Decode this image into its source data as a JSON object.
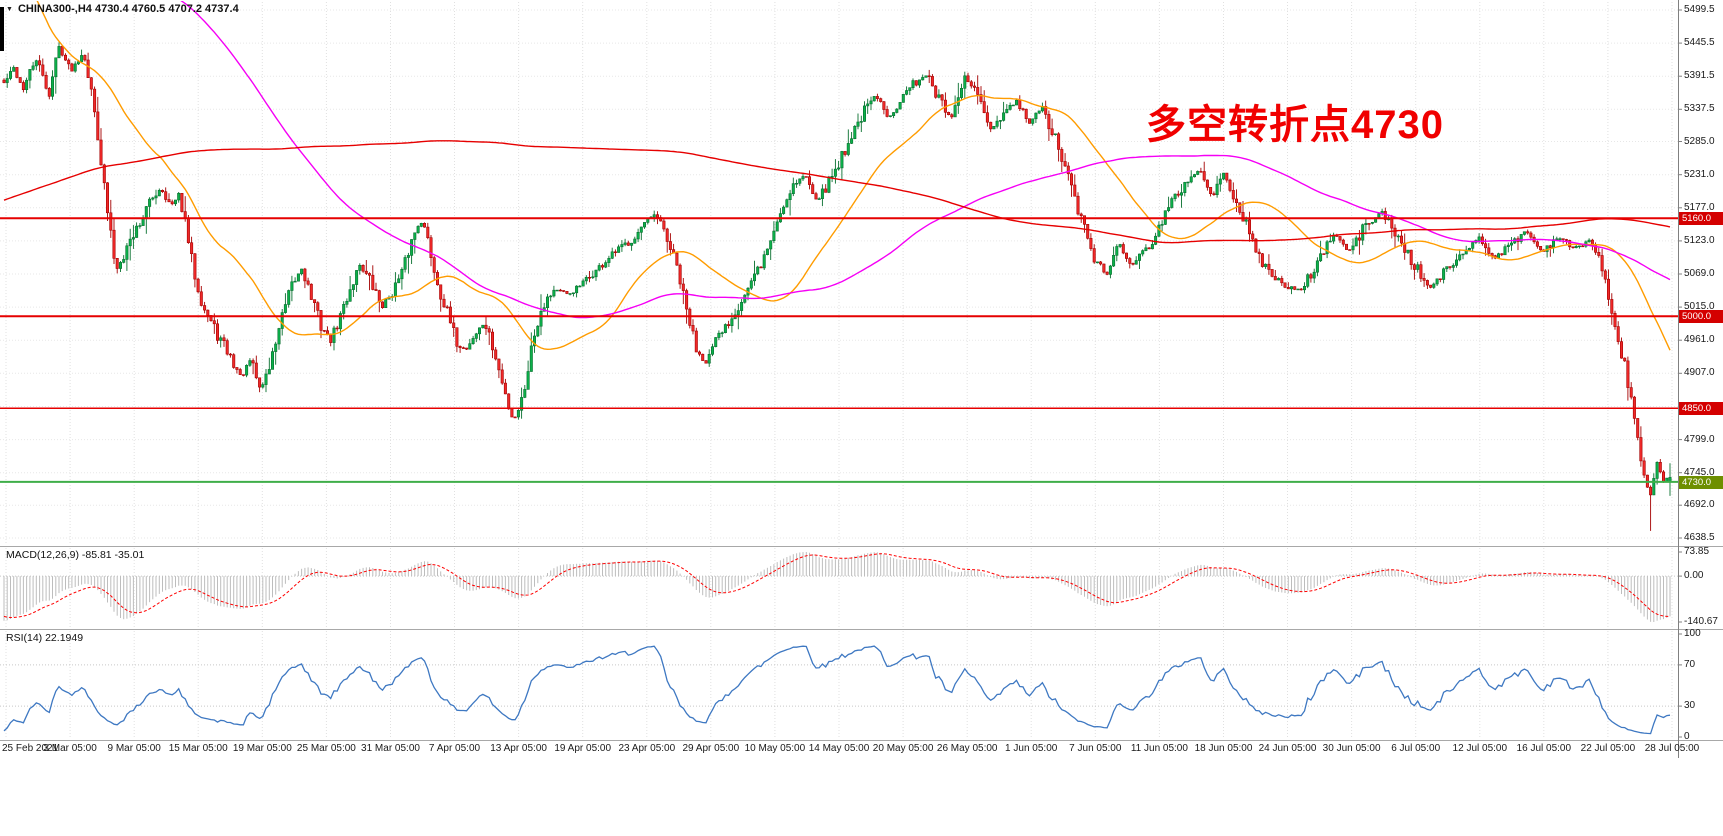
{
  "header": {
    "title": "CHINA300-,H4 4730.4 4760.5 4707.2 4737.4",
    "symbol_marker": "▼"
  },
  "annotation": {
    "text": "多空转折点4730",
    "color": "#f00000"
  },
  "panels": {
    "macd_label": "MACD(12,26,9) -85.81 -35.01",
    "rsi_label": "RSI(14) 22.1949"
  },
  "chart_data": {
    "type": "candlestick",
    "symbol": "CHINA300-",
    "timeframe": "H4",
    "last_bar": {
      "open": 4730.4,
      "high": 4760.5,
      "low": 4707.2,
      "close": 4737.4
    },
    "num_candles": 516,
    "y_axis": {
      "top_value": 5499.5,
      "bottom_value": 4638.5,
      "tick_labels": [
        "5499.5",
        "5445.5",
        "5391.5",
        "5337.5",
        "5285.0",
        "5231.0",
        "5177.0",
        "5123.0",
        "5069.0",
        "5015.0",
        "4961.0",
        "4907.0",
        "4853.0",
        "4799.0",
        "4745.0",
        "4692.0",
        "4638.5"
      ],
      "tick_values": [
        5499.5,
        5445.5,
        5391.5,
        5337.5,
        5285.0,
        5231.0,
        5177.0,
        5123.0,
        5069.0,
        5015.0,
        4961.0,
        4907.0,
        4853.0,
        4799.0,
        4745.0,
        4692.0,
        4638.5
      ]
    },
    "x_axis": {
      "tick_labels": [
        "25 Feb 2021",
        "3 Mar 05:00",
        "9 Mar 05:00",
        "15 Mar 05:00",
        "19 Mar 05:00",
        "25 Mar 05:00",
        "31 Mar 05:00",
        "7 Apr 05:00",
        "13 Apr 05:00",
        "19 Apr 05:00",
        "23 Apr 05:00",
        "29 Apr 05:00",
        "10 May 05:00",
        "14 May 05:00",
        "20 May 05:00",
        "26 May 05:00",
        "1 Jun 05:00",
        "7 Jun 05:00",
        "11 Jun 05:00",
        "18 Jun 05:00",
        "24 Jun 05:00",
        "30 Jun 05:00",
        "6 Jul 05:00",
        "12 Jul 05:00",
        "16 Jul 05:00",
        "22 Jul 05:00",
        "28 Jul 05:00"
      ]
    },
    "levels": [
      {
        "value": 5160.0,
        "label": "5160.0",
        "line_color": "#e60000",
        "box_color": "#d40000",
        "width": 2
      },
      {
        "value": 5000.0,
        "label": "5000.0",
        "line_color": "#e60000",
        "box_color": "#d40000",
        "width": 2
      },
      {
        "value": 4850.0,
        "label": "4850.0",
        "line_color": "#e60000",
        "box_color": "#d40000",
        "width": 1.5
      },
      {
        "value": 4730.0,
        "label": "4730.0",
        "line_color": "#3fae49",
        "box_color": "#6d8f00",
        "width": 2
      }
    ],
    "close_path": [
      [
        0,
        5380
      ],
      [
        0.15,
        5405
      ],
      [
        0.3,
        5370
      ],
      [
        0.5,
        5420
      ],
      [
        0.7,
        5360
      ],
      [
        0.85,
        5440
      ],
      [
        1.05,
        5400
      ],
      [
        1.25,
        5435
      ],
      [
        1.45,
        5310
      ],
      [
        1.6,
        5180
      ],
      [
        1.75,
        5075
      ],
      [
        1.9,
        5110
      ],
      [
        2.1,
        5150
      ],
      [
        2.3,
        5190
      ],
      [
        2.45,
        5210
      ],
      [
        2.6,
        5180
      ],
      [
        2.75,
        5195
      ],
      [
        2.95,
        5080
      ],
      [
        3.1,
        5020
      ],
      [
        3.3,
        4975
      ],
      [
        3.5,
        4940
      ],
      [
        3.7,
        4900
      ],
      [
        3.85,
        4930
      ],
      [
        4.0,
        4880
      ],
      [
        4.15,
        4920
      ],
      [
        4.3,
        4985
      ],
      [
        4.5,
        5050
      ],
      [
        4.65,
        5080
      ],
      [
        4.8,
        5030
      ],
      [
        4.95,
        4985
      ],
      [
        5.1,
        4960
      ],
      [
        5.25,
        5000
      ],
      [
        5.4,
        5045
      ],
      [
        5.55,
        5085
      ],
      [
        5.7,
        5060
      ],
      [
        5.9,
        5015
      ],
      [
        6.05,
        5040
      ],
      [
        6.2,
        5065
      ],
      [
        6.35,
        5120
      ],
      [
        6.5,
        5160
      ],
      [
        6.6,
        5130
      ],
      [
        6.75,
        5060
      ],
      [
        6.9,
        5010
      ],
      [
        7.05,
        4960
      ],
      [
        7.2,
        4945
      ],
      [
        7.35,
        4970
      ],
      [
        7.5,
        4990
      ],
      [
        7.65,
        4940
      ],
      [
        7.8,
        4880
      ],
      [
        7.95,
        4830
      ],
      [
        8.1,
        4870
      ],
      [
        8.25,
        4960
      ],
      [
        8.4,
        5020
      ],
      [
        8.6,
        5045
      ],
      [
        8.8,
        5035
      ],
      [
        9.0,
        5050
      ],
      [
        9.2,
        5070
      ],
      [
        9.4,
        5090
      ],
      [
        9.6,
        5110
      ],
      [
        9.8,
        5125
      ],
      [
        10.0,
        5150
      ],
      [
        10.15,
        5165
      ],
      [
        10.3,
        5140
      ],
      [
        10.5,
        5080
      ],
      [
        10.65,
        5010
      ],
      [
        10.8,
        4950
      ],
      [
        10.95,
        4925
      ],
      [
        11.1,
        4955
      ],
      [
        11.3,
        4990
      ],
      [
        11.5,
        5025
      ],
      [
        11.7,
        5060
      ],
      [
        11.9,
        5105
      ],
      [
        12.1,
        5165
      ],
      [
        12.3,
        5215
      ],
      [
        12.5,
        5230
      ],
      [
        12.7,
        5190
      ],
      [
        12.85,
        5215
      ],
      [
        13.0,
        5245
      ],
      [
        13.2,
        5290
      ],
      [
        13.4,
        5330
      ],
      [
        13.6,
        5360
      ],
      [
        13.8,
        5325
      ],
      [
        14.0,
        5355
      ],
      [
        14.2,
        5380
      ],
      [
        14.4,
        5395
      ],
      [
        14.6,
        5350
      ],
      [
        14.8,
        5320
      ],
      [
        15.0,
        5390
      ],
      [
        15.2,
        5360
      ],
      [
        15.4,
        5300
      ],
      [
        15.6,
        5330
      ],
      [
        15.8,
        5350
      ],
      [
        16.0,
        5315
      ],
      [
        16.2,
        5340
      ],
      [
        16.4,
        5290
      ],
      [
        16.6,
        5230
      ],
      [
        16.8,
        5160
      ],
      [
        17.0,
        5100
      ],
      [
        17.2,
        5065
      ],
      [
        17.4,
        5120
      ],
      [
        17.6,
        5085
      ],
      [
        17.8,
        5105
      ],
      [
        18.0,
        5140
      ],
      [
        18.2,
        5180
      ],
      [
        18.45,
        5220
      ],
      [
        18.65,
        5240
      ],
      [
        18.85,
        5195
      ],
      [
        19.05,
        5235
      ],
      [
        19.25,
        5185
      ],
      [
        19.5,
        5115
      ],
      [
        19.75,
        5070
      ],
      [
        20.0,
        5050
      ],
      [
        20.25,
        5040
      ],
      [
        20.5,
        5090
      ],
      [
        20.75,
        5135
      ],
      [
        21.0,
        5105
      ],
      [
        21.25,
        5150
      ],
      [
        21.5,
        5170
      ],
      [
        21.75,
        5130
      ],
      [
        22.0,
        5085
      ],
      [
        22.25,
        5045
      ],
      [
        22.5,
        5075
      ],
      [
        22.75,
        5100
      ],
      [
        23.0,
        5130
      ],
      [
        23.25,
        5095
      ],
      [
        23.5,
        5115
      ],
      [
        23.75,
        5140
      ],
      [
        24.0,
        5105
      ],
      [
        24.25,
        5130
      ],
      [
        24.5,
        5110
      ],
      [
        24.75,
        5125
      ],
      [
        24.95,
        5080
      ],
      [
        25.1,
        4990
      ],
      [
        25.25,
        4940
      ],
      [
        25.4,
        4865
      ],
      [
        25.55,
        4760
      ],
      [
        25.68,
        4700
      ],
      [
        25.8,
        4756
      ],
      [
        25.9,
        4728
      ],
      [
        26,
        4737.4
      ]
    ],
    "prehistory_path": [
      [
        -400,
        4660
      ],
      [
        -340,
        4760
      ],
      [
        -280,
        4860
      ],
      [
        -220,
        4960
      ],
      [
        -160,
        5080
      ],
      [
        -110,
        5300
      ],
      [
        -70,
        5550
      ],
      [
        -45,
        5800
      ],
      [
        -32,
        5930
      ],
      [
        -22,
        5780
      ],
      [
        -12,
        5560
      ],
      [
        -4,
        5430
      ],
      [
        -1,
        5390
      ]
    ],
    "spike_low": {
      "bar_index": 509,
      "price": 4650
    },
    "candle_colors": {
      "up_fill": "#0cb04a",
      "up_stroke": "#076f2e",
      "down_fill": "#ef2929",
      "down_stroke": "#a40000"
    },
    "moving_averages": [
      {
        "name": "fast-ma",
        "period": 34,
        "color": "#ff9c00"
      },
      {
        "name": "medium-ma",
        "period": 120,
        "color": "#f500f5"
      },
      {
        "name": "slow-ma",
        "period": 330,
        "color": "#e60000"
      }
    ],
    "macd": {
      "params": "12,26,9",
      "values": [
        -85.81,
        -35.01
      ],
      "axis_tick_labels": [
        "73.85",
        "0.00",
        "-140.67"
      ],
      "axis_tick_values": [
        73.85,
        0,
        -140.67
      ],
      "histogram_color": "#bdbdbd",
      "signal_color": "#ff0000"
    },
    "rsi": {
      "period": 14,
      "value": 22.1949,
      "axis_tick_labels": [
        "100",
        "70",
        "30",
        "0"
      ],
      "axis_tick_values": [
        100,
        70,
        30,
        0
      ],
      "guide_levels": [
        70,
        30
      ],
      "color": "#3e78c2"
    },
    "grid_color": "#e0e0e0"
  }
}
